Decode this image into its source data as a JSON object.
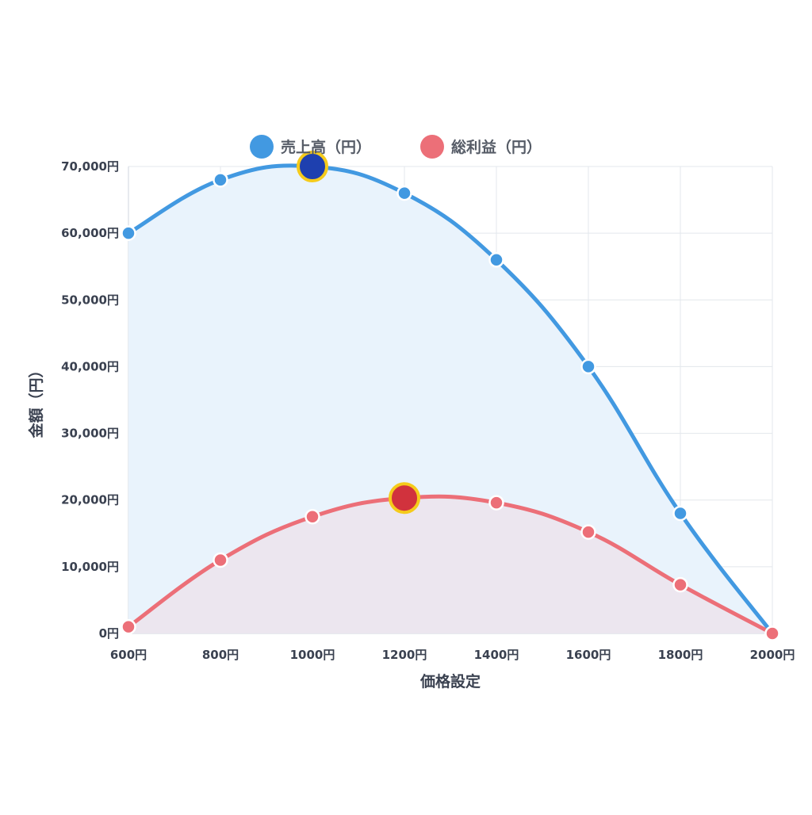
{
  "chart_data": {
    "type": "line",
    "categories": [
      "600円",
      "800円",
      "1000円",
      "1200円",
      "1400円",
      "1600円",
      "1800円",
      "2000円"
    ],
    "series": [
      {
        "name": "売上高（円）",
        "values": [
          60000,
          68000,
          70000,
          66000,
          56000,
          40000,
          18000,
          0
        ],
        "color": "#4299e1",
        "fill": "#e9f3fc",
        "highlight_index": 2,
        "highlight_color": "#1e40af"
      },
      {
        "name": "総利益（円）",
        "values": [
          1000,
          11000,
          17500,
          20300,
          19600,
          15200,
          7300,
          0
        ],
        "color": "#ec6f78",
        "fill": "#ece3ec",
        "highlight_index": 3,
        "highlight_color": "#d1323d"
      }
    ],
    "highlight_ring_color": "#f5cb1b",
    "xlabel": "価格設定",
    "ylabel": "金額（円）",
    "ylim": [
      0,
      70000
    ],
    "yticks": [
      "0円",
      "10,000円",
      "20,000円",
      "30,000円",
      "40,000円",
      "50,000円",
      "60,000円",
      "70,000円"
    ],
    "grid": true,
    "legend_position": "top-center"
  }
}
